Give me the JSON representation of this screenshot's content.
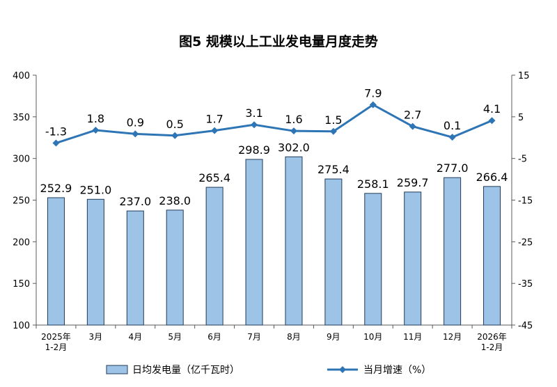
{
  "chart_data": {
    "type": "bar+line",
    "title": "图5  规模以上工业发电量月度走势",
    "categories": [
      "2025年\n1-2月",
      "3月",
      "4月",
      "5月",
      "6月",
      "7月",
      "8月",
      "9月",
      "10月",
      "11月",
      "12月",
      "2026年\n1-2月"
    ],
    "series": [
      {
        "name": "日均发电量（亿千瓦时）",
        "type": "bar",
        "axis": "left",
        "values": [
          252.9,
          251.0,
          237.0,
          238.0,
          265.4,
          298.9,
          302.0,
          275.4,
          258.1,
          259.7,
          277.0,
          266.4
        ],
        "labels": [
          "252.9",
          "251.0",
          "237.0",
          "238.0",
          "265.4",
          "298.9",
          "302.0",
          "275.4",
          "258.1",
          "259.7",
          "277.0",
          "266.4"
        ]
      },
      {
        "name": "当月增速（%）",
        "type": "line",
        "axis": "right",
        "values": [
          -1.3,
          1.8,
          0.9,
          0.5,
          1.7,
          3.1,
          1.6,
          1.5,
          7.9,
          2.7,
          0.1,
          4.1
        ],
        "labels": [
          "-1.3",
          "1.8",
          "0.9",
          "0.5",
          "1.7",
          "3.1",
          "1.6",
          "1.5",
          "7.9",
          "2.7",
          "0.1",
          "4.1"
        ]
      }
    ],
    "y_left": {
      "min": 100,
      "max": 400,
      "ticks": [
        "100",
        "150",
        "200",
        "250",
        "300",
        "350",
        "400"
      ]
    },
    "y_right": {
      "min": -45,
      "max": 15,
      "ticks": [
        "-45",
        "-35",
        "-25",
        "-15",
        "-5",
        "5",
        "15"
      ]
    },
    "legend": {
      "position": "bottom"
    },
    "colors": {
      "bar_fill": "#9DC3E6",
      "bar_stroke": "#1F3A5A",
      "line": "#2E75B6",
      "axis": "#595959",
      "text": "#000000"
    }
  }
}
